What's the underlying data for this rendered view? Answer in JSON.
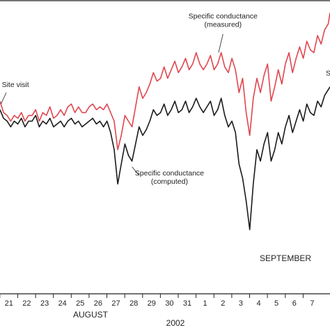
{
  "chart_data": {
    "type": "line",
    "xlabel": "2002",
    "x_groups": [
      "AUGUST",
      "SEPTEMBER"
    ],
    "x_ticks": [
      "21",
      "22",
      "23",
      "24",
      "25",
      "26",
      "27",
      "28",
      "29",
      "30",
      "31",
      "1",
      "2",
      "3",
      "4",
      "5",
      "6",
      "7"
    ],
    "xlim": [
      20.5,
      39.0
    ],
    "ylim": [
      0,
      1
    ],
    "ylabel": "",
    "annotations": [
      {
        "lines": [
          "Site visit"
        ],
        "x": 20.6,
        "y": 0.72
      },
      {
        "lines": [
          "Specific conductance",
          "(measured)"
        ],
        "x": 33.0,
        "y": 0.96
      },
      {
        "lines": [
          "Specific conductance",
          "(computed)"
        ],
        "x": 30.0,
        "y": 0.41
      },
      {
        "lines": [
          "S"
        ],
        "x": 38.9,
        "y": 0.76
      }
    ],
    "series": [
      {
        "name": "Specific conductance (measured)",
        "color": "#e0464f",
        "x": [
          20.5,
          20.7,
          20.9,
          21.1,
          21.3,
          21.5,
          21.7,
          21.9,
          22.1,
          22.3,
          22.5,
          22.7,
          22.9,
          23.1,
          23.3,
          23.5,
          23.7,
          23.9,
          24.1,
          24.3,
          24.5,
          24.7,
          24.9,
          25.1,
          25.3,
          25.5,
          25.7,
          25.9,
          26.1,
          26.3,
          26.5,
          26.7,
          26.9,
          27.1,
          27.3,
          27.5,
          27.7,
          27.9,
          28.1,
          28.3,
          28.5,
          28.7,
          28.9,
          29.1,
          29.3,
          29.5,
          29.7,
          29.9,
          30.1,
          30.3,
          30.5,
          30.7,
          30.9,
          31.1,
          31.3,
          31.5,
          31.7,
          31.9,
          32.1,
          32.3,
          32.5,
          32.7,
          32.9,
          33.1,
          33.3,
          33.5,
          33.7,
          33.9,
          34.1,
          34.3,
          34.5,
          34.7,
          34.9,
          35.1,
          35.3,
          35.5,
          35.7,
          35.9,
          36.1,
          36.3,
          36.5,
          36.7,
          36.9,
          37.1,
          37.3,
          37.5,
          37.7,
          37.9,
          38.1,
          38.3,
          38.5,
          38.7,
          38.9,
          39.0
        ],
        "values": [
          0.67,
          0.63,
          0.62,
          0.6,
          0.62,
          0.61,
          0.63,
          0.6,
          0.62,
          0.62,
          0.64,
          0.6,
          0.63,
          0.62,
          0.65,
          0.61,
          0.62,
          0.64,
          0.62,
          0.65,
          0.66,
          0.63,
          0.65,
          0.63,
          0.63,
          0.65,
          0.66,
          0.64,
          0.65,
          0.64,
          0.66,
          0.63,
          0.6,
          0.5,
          0.55,
          0.62,
          0.6,
          0.58,
          0.65,
          0.72,
          0.68,
          0.7,
          0.73,
          0.77,
          0.74,
          0.75,
          0.79,
          0.75,
          0.78,
          0.81,
          0.77,
          0.79,
          0.82,
          0.78,
          0.8,
          0.84,
          0.8,
          0.78,
          0.8,
          0.83,
          0.78,
          0.8,
          0.84,
          0.79,
          0.77,
          0.82,
          0.78,
          0.7,
          0.75,
          0.63,
          0.55,
          0.68,
          0.75,
          0.7,
          0.76,
          0.8,
          0.67,
          0.72,
          0.78,
          0.73,
          0.8,
          0.84,
          0.77,
          0.82,
          0.86,
          0.82,
          0.88,
          0.85,
          0.84,
          0.9,
          0.87,
          0.92,
          0.94,
          0.98
        ]
      },
      {
        "name": "Specific conductance (computed)",
        "color": "#1a1a1a",
        "x": [
          20.5,
          20.7,
          20.9,
          21.1,
          21.3,
          21.5,
          21.7,
          21.9,
          22.1,
          22.3,
          22.5,
          22.7,
          22.9,
          23.1,
          23.3,
          23.5,
          23.7,
          23.9,
          24.1,
          24.3,
          24.5,
          24.7,
          24.9,
          25.1,
          25.3,
          25.5,
          25.7,
          25.9,
          26.1,
          26.3,
          26.5,
          26.7,
          26.9,
          27.1,
          27.3,
          27.5,
          27.7,
          27.9,
          28.1,
          28.3,
          28.5,
          28.7,
          28.9,
          29.1,
          29.3,
          29.5,
          29.7,
          29.9,
          30.1,
          30.3,
          30.5,
          30.7,
          30.9,
          31.1,
          31.3,
          31.5,
          31.7,
          31.9,
          32.1,
          32.3,
          32.5,
          32.7,
          32.9,
          33.1,
          33.3,
          33.5,
          33.7,
          33.9,
          34.1,
          34.3,
          34.5,
          34.7,
          34.9,
          35.1,
          35.3,
          35.5,
          35.7,
          35.9,
          36.1,
          36.3,
          36.5,
          36.7,
          36.9,
          37.1,
          37.3,
          37.5,
          37.7,
          37.9,
          38.1,
          38.3,
          38.5,
          38.7,
          38.9,
          39.0
        ],
        "values": [
          0.64,
          0.61,
          0.6,
          0.58,
          0.6,
          0.59,
          0.61,
          0.58,
          0.6,
          0.6,
          0.62,
          0.58,
          0.6,
          0.59,
          0.61,
          0.58,
          0.59,
          0.6,
          0.58,
          0.6,
          0.61,
          0.59,
          0.6,
          0.58,
          0.59,
          0.6,
          0.61,
          0.59,
          0.6,
          0.58,
          0.6,
          0.56,
          0.5,
          0.38,
          0.45,
          0.52,
          0.48,
          0.46,
          0.52,
          0.58,
          0.55,
          0.57,
          0.6,
          0.64,
          0.62,
          0.63,
          0.66,
          0.62,
          0.64,
          0.67,
          0.63,
          0.64,
          0.67,
          0.63,
          0.65,
          0.68,
          0.65,
          0.63,
          0.65,
          0.67,
          0.62,
          0.64,
          0.68,
          0.62,
          0.58,
          0.6,
          0.56,
          0.45,
          0.4,
          0.32,
          0.22,
          0.38,
          0.5,
          0.46,
          0.52,
          0.56,
          0.46,
          0.5,
          0.56,
          0.52,
          0.58,
          0.62,
          0.56,
          0.6,
          0.64,
          0.6,
          0.66,
          0.63,
          0.62,
          0.67,
          0.65,
          0.69,
          0.71,
          0.72
        ]
      }
    ]
  }
}
